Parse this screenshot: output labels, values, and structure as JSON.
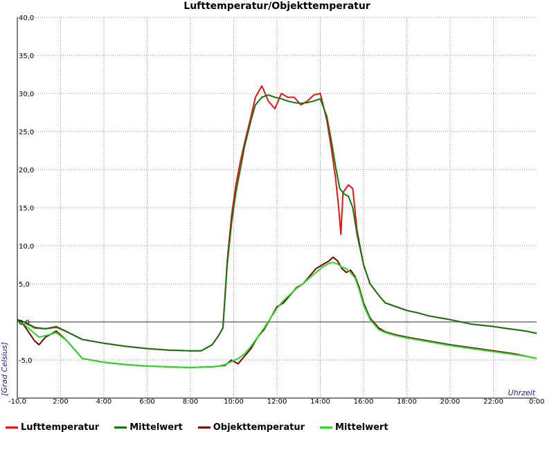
{
  "chart_data": {
    "type": "line",
    "title": "Lufttemperatur/Objekttemperatur",
    "xlabel": "Uhrzeit",
    "ylabel": "[Grad Celsius]",
    "xlim": [
      0,
      24
    ],
    "ylim": [
      -10,
      40
    ],
    "x_tick_labels": [
      "-10,0",
      "2:00",
      "4:00",
      "6:00",
      "8:00",
      "10:00",
      "12:00",
      "14:00",
      "16:00",
      "18:00",
      "20:00",
      "22:00",
      "0:00"
    ],
    "y_tick_labels": [
      "-5,0",
      "0,0",
      "5,0",
      "10,0",
      "15,0",
      "20,0",
      "25,0",
      "30,0",
      "35,0",
      "40,0"
    ],
    "y_tick_values": [
      -5,
      0,
      5,
      10,
      15,
      20,
      25,
      30,
      35,
      40
    ],
    "grid": true,
    "reference_line": 0,
    "legend_position": "bottom",
    "series": [
      {
        "name": "Lufttemperatur",
        "color": "#ee1111",
        "x": [
          0,
          0.3,
          0.8,
          1.3,
          1.8,
          2.3,
          3,
          4,
          5,
          6,
          7,
          8,
          8.5,
          9,
          9.3,
          9.5,
          9.7,
          9.9,
          10.1,
          10.3,
          10.5,
          10.8,
          11,
          11.3,
          11.6,
          11.9,
          12.2,
          12.5,
          12.8,
          13.1,
          13.4,
          13.7,
          14,
          14.3,
          14.5,
          14.7,
          14.85,
          14.95,
          15.05,
          15.3,
          15.5,
          15.7,
          16,
          16.3,
          16.7,
          17,
          17.5,
          18,
          18.5,
          19,
          20,
          21,
          22,
          22.7,
          23,
          23.5,
          24
        ],
        "y": [
          0.3,
          0.0,
          -0.8,
          -0.9,
          -0.6,
          -1.3,
          -2.3,
          -2.8,
          -3.2,
          -3.5,
          -3.7,
          -3.8,
          -3.8,
          -3.0,
          -1.8,
          -0.8,
          8.0,
          14.0,
          18.0,
          21.0,
          23.5,
          27.0,
          29.5,
          31.0,
          29.0,
          28.0,
          30.0,
          29.5,
          29.5,
          28.5,
          29.0,
          29.8,
          30.0,
          26.5,
          23.0,
          19.0,
          15.0,
          11.5,
          17.0,
          18.0,
          17.5,
          12.0,
          7.5,
          5.0,
          3.5,
          2.5,
          2.0,
          1.5,
          1.2,
          0.8,
          0.3,
          -0.3,
          -0.6,
          -0.9,
          -1.0,
          -1.2,
          -1.5
        ]
      },
      {
        "name": "Mittelwert",
        "color": "#117711",
        "x": [
          0,
          0.3,
          0.8,
          1.3,
          1.8,
          2.3,
          3,
          4,
          5,
          6,
          7,
          8,
          8.5,
          9,
          9.3,
          9.5,
          9.7,
          9.9,
          10.1,
          10.3,
          10.5,
          10.8,
          11,
          11.3,
          11.6,
          11.9,
          12.2,
          12.5,
          12.8,
          13.1,
          13.4,
          13.7,
          14,
          14.3,
          14.5,
          14.7,
          14.9,
          15.1,
          15.3,
          15.5,
          15.7,
          16,
          16.3,
          16.7,
          17,
          17.5,
          18,
          18.5,
          19,
          20,
          21,
          22,
          22.7,
          23,
          23.5,
          24
        ],
        "y": [
          0.2,
          0.0,
          -0.7,
          -0.9,
          -0.7,
          -1.3,
          -2.3,
          -2.8,
          -3.2,
          -3.5,
          -3.7,
          -3.8,
          -3.8,
          -3.0,
          -1.8,
          -0.8,
          7.5,
          13.0,
          17.0,
          20.0,
          23.0,
          26.5,
          28.5,
          29.5,
          29.8,
          29.5,
          29.3,
          29.0,
          28.8,
          28.7,
          28.8,
          29.0,
          29.3,
          27.0,
          24.0,
          20.5,
          17.5,
          16.8,
          16.5,
          15.0,
          11.5,
          7.5,
          5.0,
          3.5,
          2.5,
          2.0,
          1.5,
          1.2,
          0.8,
          0.3,
          -0.3,
          -0.6,
          -0.9,
          -1.0,
          -1.2,
          -1.5
        ]
      },
      {
        "name": "Objekttemperatur",
        "color": "#7a0000",
        "x": [
          0,
          0.3,
          0.8,
          1.0,
          1.3,
          1.8,
          2.3,
          3,
          4,
          5,
          6,
          7,
          8,
          8.7,
          9,
          9.3,
          9.6,
          9.9,
          10.2,
          10.5,
          10.8,
          11.1,
          11.4,
          11.7,
          12,
          12.3,
          12.6,
          12.9,
          13.2,
          13.5,
          13.8,
          14.1,
          14.4,
          14.6,
          14.8,
          15,
          15.2,
          15.4,
          15.6,
          15.8,
          16,
          16.3,
          16.7,
          17,
          17.5,
          18,
          19,
          20,
          21,
          22,
          23,
          23.5,
          24
        ],
        "y": [
          0.2,
          -0.4,
          -2.5,
          -3.0,
          -2.0,
          -1.2,
          -2.5,
          -4.8,
          -5.3,
          -5.6,
          -5.8,
          -5.9,
          -6.0,
          -5.9,
          -5.9,
          -5.8,
          -5.7,
          -5.0,
          -5.5,
          -4.5,
          -3.5,
          -2.0,
          -1.0,
          0.5,
          2.0,
          2.5,
          3.5,
          4.5,
          5.0,
          6.0,
          7.0,
          7.5,
          8.0,
          8.5,
          8.0,
          7.0,
          6.5,
          6.8,
          6.0,
          4.5,
          2.5,
          0.5,
          -0.8,
          -1.3,
          -1.7,
          -2.0,
          -2.5,
          -3.0,
          -3.4,
          -3.8,
          -4.2,
          -4.5,
          -4.8
        ]
      },
      {
        "name": "Mittelwert",
        "color": "#22dd22",
        "x": [
          0,
          0.3,
          0.8,
          1.0,
          1.3,
          1.8,
          2.3,
          3,
          4,
          5,
          6,
          7,
          8,
          8.7,
          9,
          9.3,
          9.6,
          9.9,
          10.2,
          10.5,
          10.8,
          11.1,
          11.4,
          11.7,
          12,
          12.3,
          12.6,
          12.9,
          13.2,
          13.5,
          13.8,
          14.1,
          14.4,
          14.6,
          14.8,
          15,
          15.2,
          15.4,
          15.6,
          15.8,
          16,
          16.3,
          16.7,
          17,
          17.5,
          18,
          19,
          20,
          21,
          22,
          23,
          23.5,
          24
        ],
        "y": [
          0.1,
          -0.3,
          -1.5,
          -2.0,
          -1.8,
          -1.4,
          -2.5,
          -4.8,
          -5.3,
          -5.6,
          -5.8,
          -5.9,
          -6.0,
          -5.9,
          -5.9,
          -5.8,
          -5.6,
          -5.2,
          -4.8,
          -4.2,
          -3.2,
          -2.0,
          -0.8,
          0.5,
          1.8,
          2.8,
          3.6,
          4.4,
          5.0,
          5.8,
          6.5,
          7.2,
          7.7,
          7.8,
          7.6,
          7.2,
          7.0,
          6.5,
          5.8,
          4.2,
          2.2,
          0.3,
          -1.0,
          -1.4,
          -1.8,
          -2.1,
          -2.6,
          -3.1,
          -3.5,
          -3.9,
          -4.3,
          -4.5,
          -4.8
        ]
      }
    ]
  }
}
